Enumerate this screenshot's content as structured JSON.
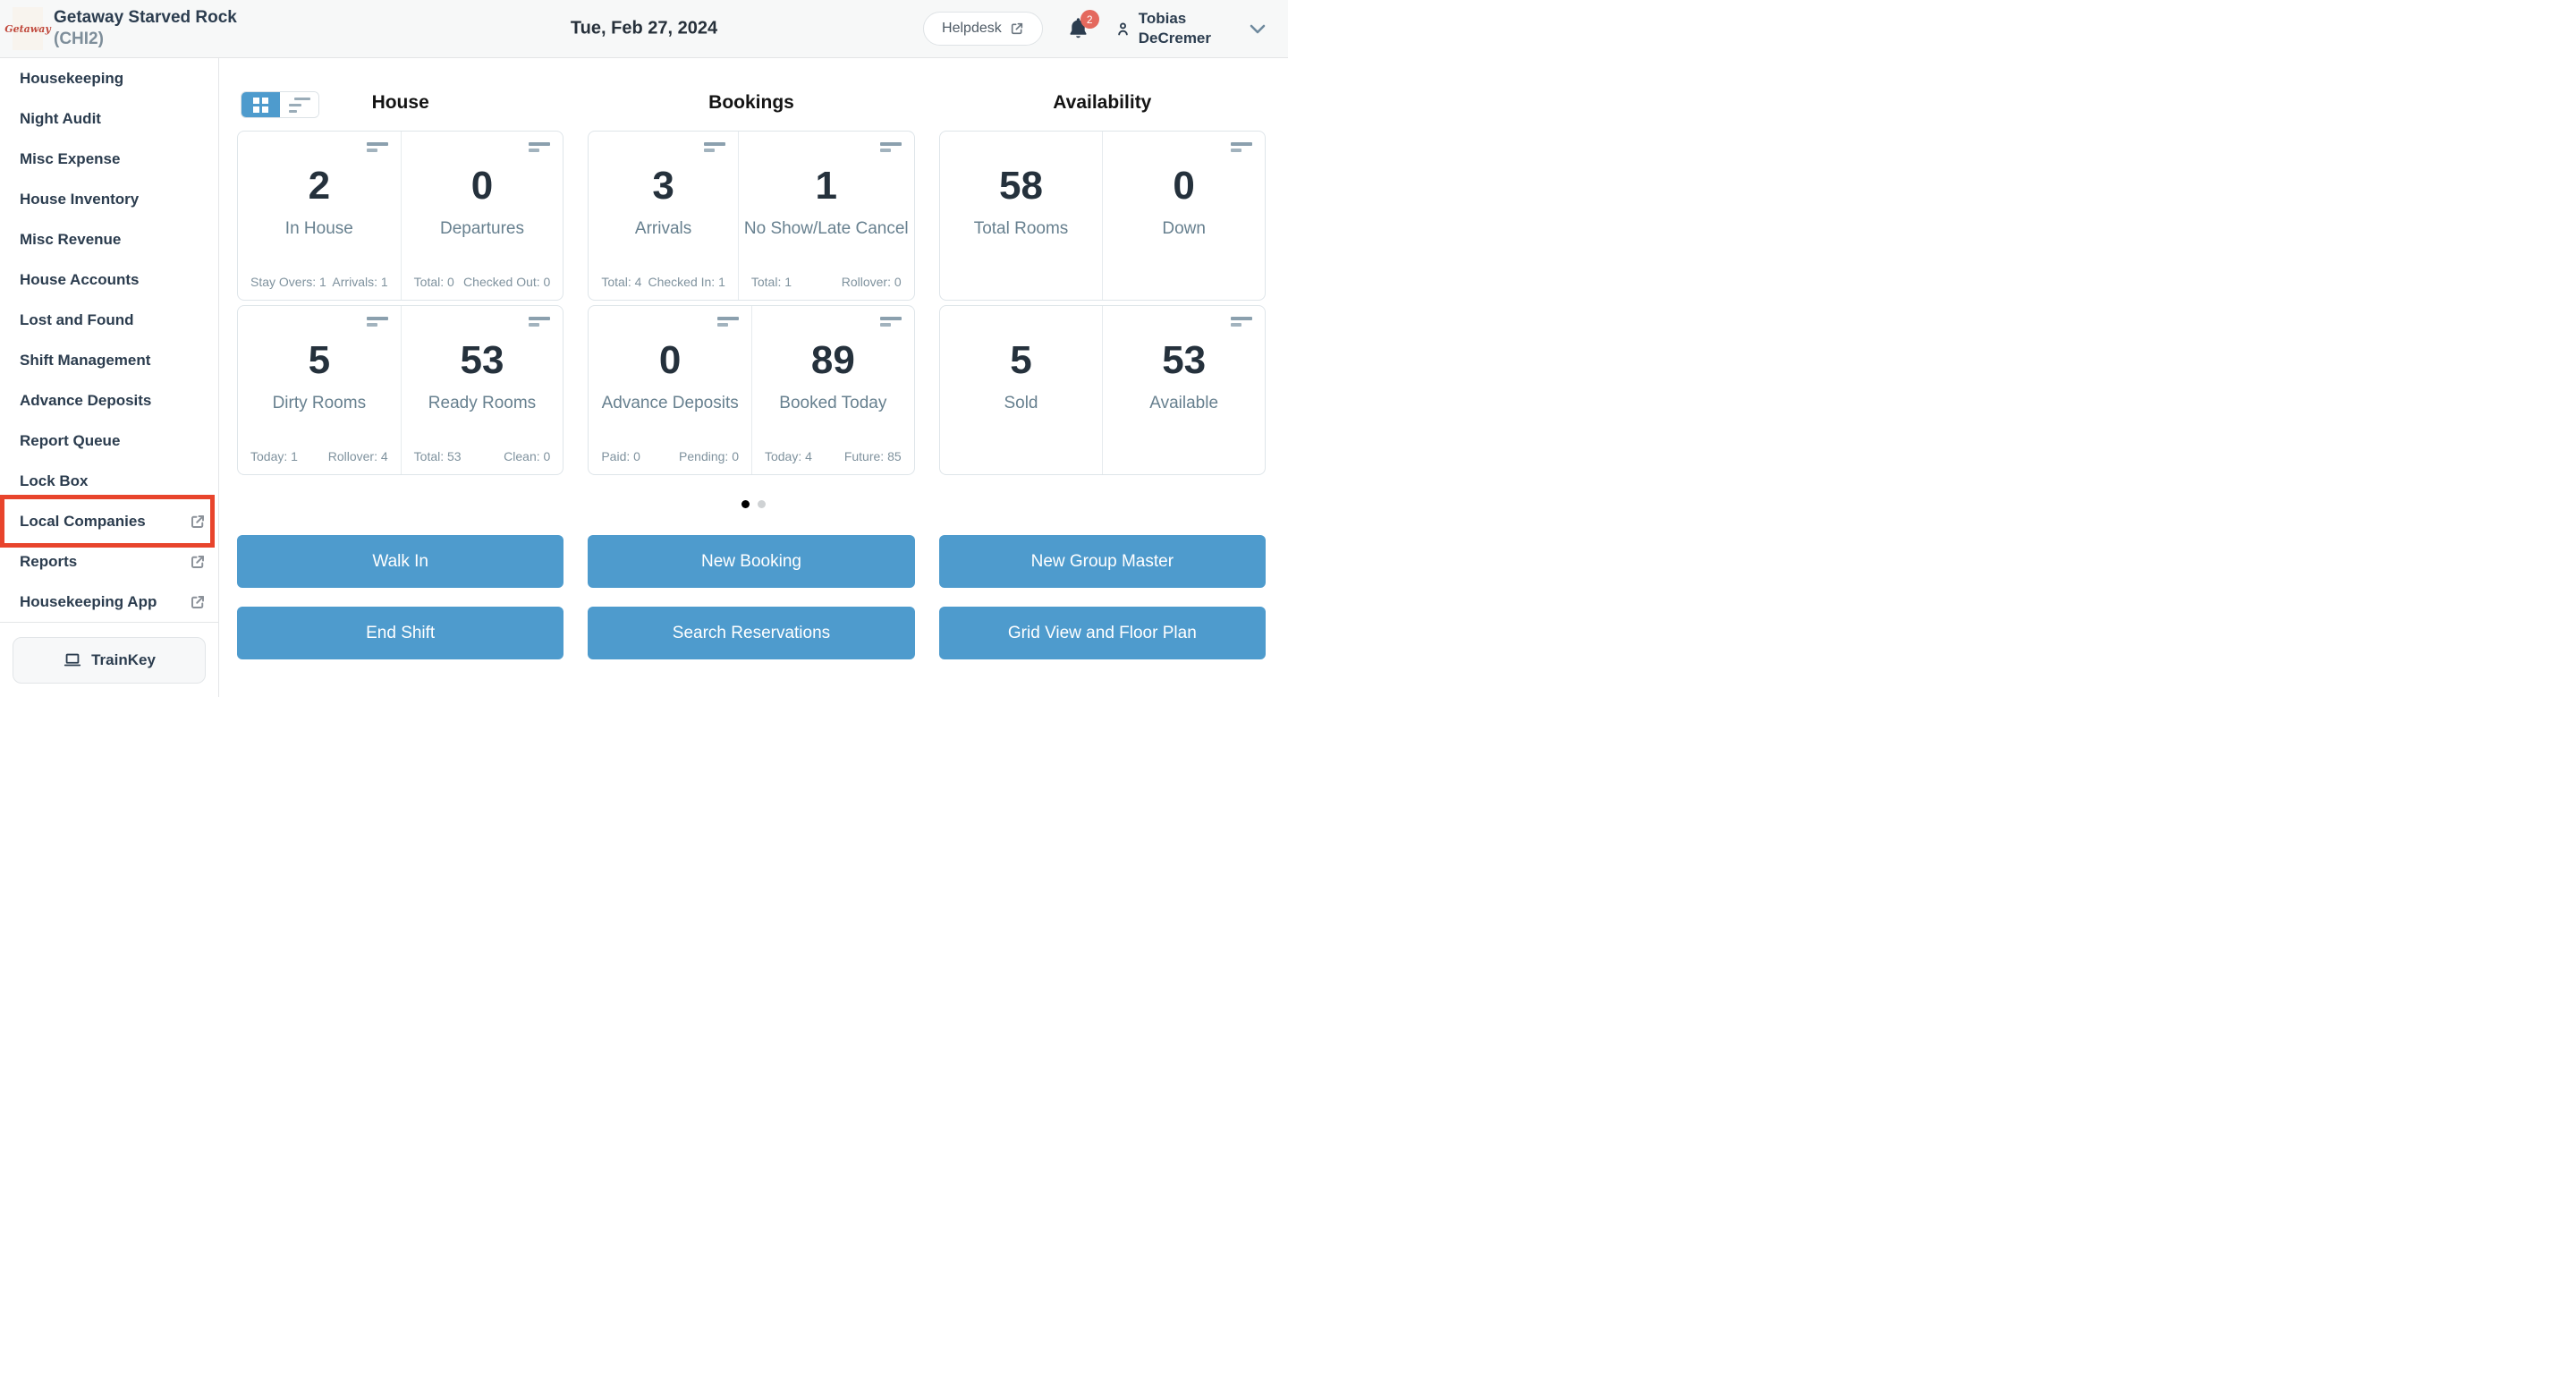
{
  "header": {
    "logo_text": "Getaway",
    "property_name": "Getaway Starved Rock",
    "property_code": "(CHI2)",
    "date": "Tue, Feb 27, 2024",
    "helpdesk_label": "Helpdesk",
    "notification_count": "2",
    "user_first_name": "Tobias",
    "user_last_name": "DeCremer"
  },
  "sidebar": {
    "items": [
      {
        "label": "Housekeeping",
        "external": false,
        "highlighted": false
      },
      {
        "label": "Night Audit",
        "external": false,
        "highlighted": false
      },
      {
        "label": "Misc Expense",
        "external": false,
        "highlighted": false
      },
      {
        "label": "House Inventory",
        "external": false,
        "highlighted": false
      },
      {
        "label": "Misc Revenue",
        "external": false,
        "highlighted": false
      },
      {
        "label": "House Accounts",
        "external": false,
        "highlighted": false
      },
      {
        "label": "Lost and Found",
        "external": false,
        "highlighted": false
      },
      {
        "label": "Shift Management",
        "external": false,
        "highlighted": false
      },
      {
        "label": "Advance Deposits",
        "external": false,
        "highlighted": false
      },
      {
        "label": "Report Queue",
        "external": false,
        "highlighted": false
      },
      {
        "label": "Lock Box",
        "external": false,
        "highlighted": false
      },
      {
        "label": "Local Companies",
        "external": true,
        "highlighted": true
      },
      {
        "label": "Reports",
        "external": true,
        "highlighted": false
      },
      {
        "label": "Housekeeping App",
        "external": true,
        "highlighted": false
      }
    ],
    "trainkey_label": "TrainKey"
  },
  "sections": [
    {
      "title": "House",
      "cards": [
        {
          "value": "2",
          "label": "In House",
          "icon": true,
          "stat_left": "Stay Overs: 1",
          "stat_right": "Arrivals: 1"
        },
        {
          "value": "0",
          "label": "Departures",
          "icon": true,
          "stat_left": "Total: 0",
          "stat_right": "Checked Out: 0"
        },
        {
          "value": "5",
          "label": "Dirty Rooms",
          "icon": true,
          "stat_left": "Today: 1",
          "stat_right": "Rollover: 4"
        },
        {
          "value": "53",
          "label": "Ready Rooms",
          "icon": true,
          "stat_left": "Total: 53",
          "stat_right": "Clean: 0"
        }
      ]
    },
    {
      "title": "Bookings",
      "cards": [
        {
          "value": "3",
          "label": "Arrivals",
          "icon": true,
          "stat_left": "Total: 4",
          "stat_right": "Checked In: 1"
        },
        {
          "value": "1",
          "label": "No Show/Late Cancel",
          "icon": true,
          "stat_left": "Total: 1",
          "stat_right": "Rollover: 0"
        },
        {
          "value": "0",
          "label": "Advance Deposits",
          "icon": true,
          "stat_left": "Paid: 0",
          "stat_right": "Pending: 0"
        },
        {
          "value": "89",
          "label": "Booked Today",
          "icon": true,
          "stat_left": "Today: 4",
          "stat_right": "Future: 85"
        }
      ]
    },
    {
      "title": "Availability",
      "cards": [
        {
          "value": "58",
          "label": "Total Rooms",
          "icon": false
        },
        {
          "value": "0",
          "label": "Down",
          "icon": true
        },
        {
          "value": "5",
          "label": "Sold",
          "icon": false
        },
        {
          "value": "53",
          "label": "Available",
          "icon": true
        }
      ]
    }
  ],
  "actions": [
    "Walk In",
    "New Booking",
    "New Group Master",
    "End Shift",
    "Search Reservations",
    "Grid View and Floor Plan"
  ],
  "carousel": {
    "pages": 2,
    "active_page": 0
  },
  "colors": {
    "accent_blue": "#4e9bcd",
    "highlight_red": "#e8442c",
    "badge_red": "#e4695e",
    "logo_red": "#c14a3d",
    "header_bg": "#f7f8f8"
  }
}
